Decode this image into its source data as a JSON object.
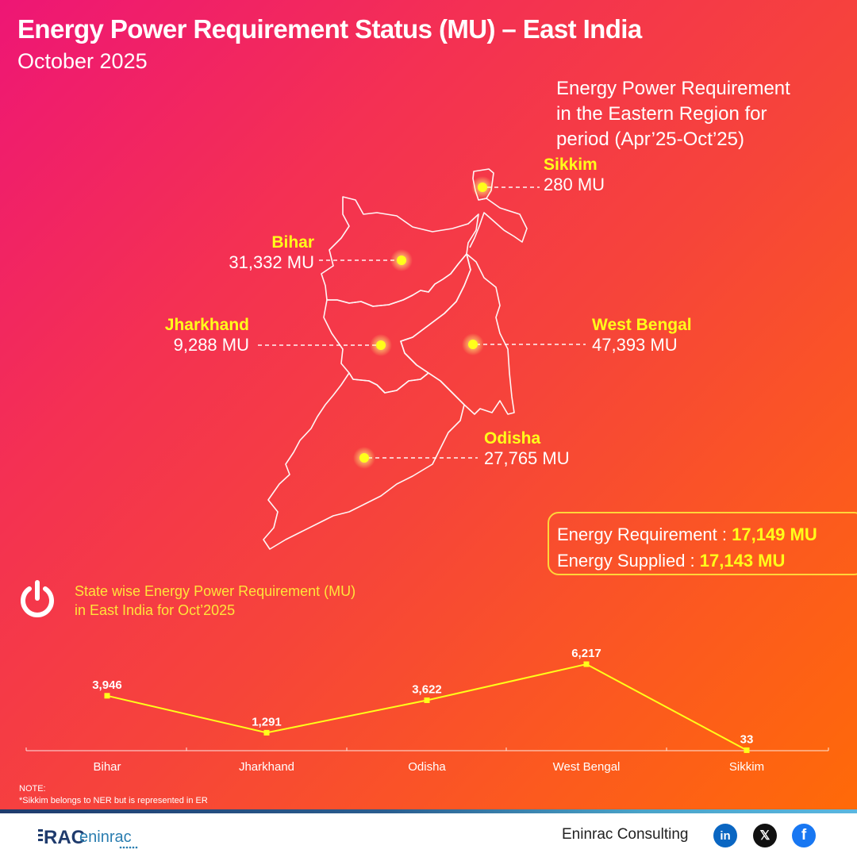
{
  "header": {
    "title": "Energy Power Requirement Status (MU) – East India",
    "subtitle": "October 2025"
  },
  "map_section": {
    "note_lines": [
      "Energy Power Requirement",
      "in the Eastern Region for",
      "period (Apr’25-Oct’25)"
    ],
    "states": [
      {
        "name": "Sikkim",
        "value": "280 MU"
      },
      {
        "name": "Bihar",
        "value": "31,332 MU"
      },
      {
        "name": "Jharkhand",
        "value": "9,288 MU"
      },
      {
        "name": "West Bengal",
        "value": "47,393 MU"
      },
      {
        "name": "Odisha",
        "value": "27,765 MU"
      }
    ],
    "marker_color": "#ffff1a"
  },
  "summary": {
    "requirement_label": "Energy Requirement : ",
    "requirement_value": "17,149 MU",
    "supplied_label": "Energy Supplied : ",
    "supplied_value": "17,143 MU"
  },
  "chart_section": {
    "icon": "power-icon",
    "heading_line1": "State wise Energy Power Requirement (MU)",
    "heading_line2": "in East India for Oct’2025"
  },
  "chart_data": {
    "type": "line",
    "title": "State wise Energy Power Requirement (MU) in East India for Oct’2025",
    "categories": [
      "Bihar",
      "Jharkhand",
      "Odisha",
      "West Bengal",
      "Sikkim"
    ],
    "values": [
      3946,
      1291,
      3622,
      6217,
      33
    ],
    "value_labels": [
      "3,946",
      "1,291",
      "3,622",
      "6,217",
      "33"
    ],
    "xlabel": "",
    "ylabel": "",
    "ylim": [
      0,
      6500
    ],
    "grid": false,
    "legend": "none",
    "line_color": "#ffff1a"
  },
  "note": {
    "heading": "NOTE:",
    "text": "*Sikkim belongs to NER but is represented in ER"
  },
  "footer": {
    "logo_text_bold": "RAC",
    "logo_text": "eninrac",
    "company": "Eninrac Consulting",
    "social": [
      {
        "name": "linkedin-icon",
        "glyph": "in",
        "color": "#0a66c2"
      },
      {
        "name": "x-icon",
        "glyph": "𝕏",
        "color": "#111111"
      },
      {
        "name": "facebook-icon",
        "glyph": "f",
        "color": "#1877f2"
      }
    ]
  }
}
